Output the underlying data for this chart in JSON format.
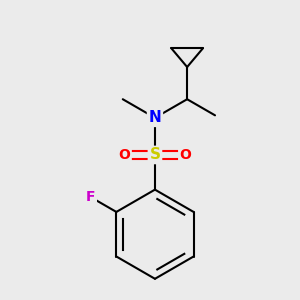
{
  "background_color": "#ebebeb",
  "atom_colors": {
    "N": "#0000ff",
    "S": "#cccc00",
    "O": "#ff0000",
    "F": "#cc00cc",
    "C": "#000000"
  },
  "bond_color": "#000000",
  "bond_width": 1.5,
  "figsize": [
    3.0,
    3.0
  ],
  "dpi": 100,
  "xlim": [
    -2.5,
    2.5
  ],
  "ylim": [
    -3.8,
    2.2
  ]
}
